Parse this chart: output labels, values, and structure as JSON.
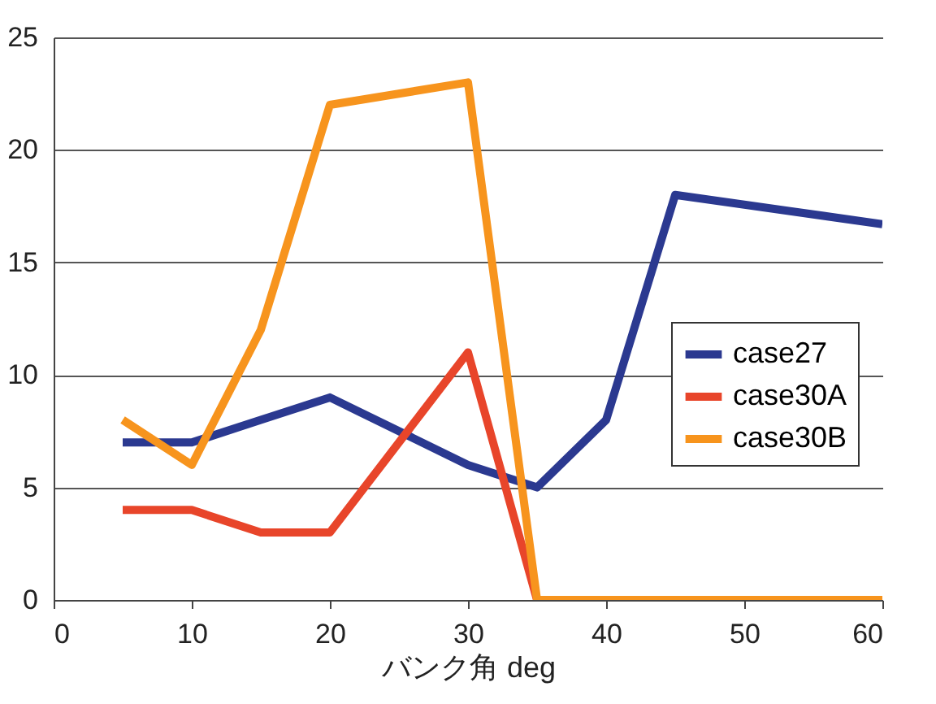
{
  "chart_data": {
    "type": "line",
    "xlabel": "バンク角      deg",
    "xlim": [
      0,
      60
    ],
    "xticks": [
      0,
      10,
      20,
      30,
      40,
      50,
      60
    ],
    "ylim": [
      0,
      25
    ],
    "yticks": [
      0,
      5,
      10,
      15,
      20,
      25
    ],
    "grid": "y",
    "legend": "right",
    "series": [
      {
        "name": "case27",
        "color": "#2b3990",
        "x": [
          5,
          10,
          15,
          20,
          30,
          35,
          40,
          45,
          60
        ],
        "values": [
          7,
          7,
          8,
          9,
          6,
          5,
          8,
          18,
          16.7
        ]
      },
      {
        "name": "case30A",
        "color": "#e8452a",
        "x": [
          5,
          10,
          15,
          20,
          30,
          35
        ],
        "values": [
          4,
          4,
          3,
          3,
          11,
          0
        ]
      },
      {
        "name": "case30B",
        "color": "#f7941d",
        "x": [
          5,
          10,
          15,
          20,
          30,
          35,
          60
        ],
        "values": [
          8,
          6,
          12,
          22,
          23,
          0,
          0
        ]
      }
    ]
  }
}
